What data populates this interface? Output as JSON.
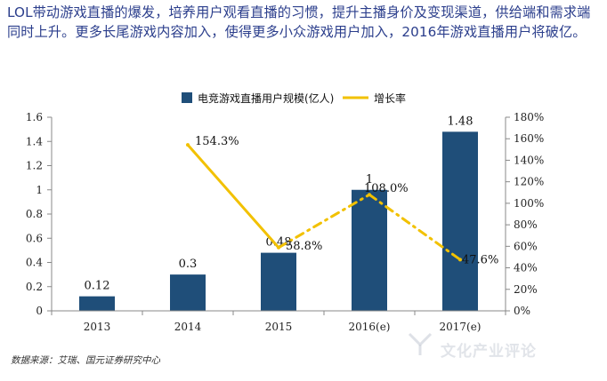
{
  "intro_text": "LOL带动游戏直播的爆发，培养用户观看直播的习惯，提升主播身价及变现渠道，供给端和需求端同时上升。更多长尾游戏内容加入，使得更多小众游戏用户加入，2016年游戏直播用户将破亿。",
  "source_text": "数据来源：艾瑞、国元证券研究中心",
  "watermark_text": "文化产业评论",
  "chart_data": {
    "type": "bar",
    "categories": [
      "2013",
      "2014",
      "2015",
      "2016(e)",
      "2017(e)"
    ],
    "series": [
      {
        "name": "电竞游戏直播用户规模(亿人)",
        "kind": "bar",
        "axis": "left",
        "color": "#1f4e79",
        "values": [
          0.12,
          0.3,
          0.48,
          1,
          1.48
        ],
        "labels": [
          "0.12",
          "0.3",
          "0.48",
          "1",
          "1.48"
        ]
      },
      {
        "name": "增长率",
        "kind": "line",
        "axis": "right",
        "color": "#f2c100",
        "values": [
          null,
          154.3,
          58.8,
          108.0,
          47.6
        ],
        "labels": [
          "",
          "154.3%",
          "58.8%",
          "108.0%",
          "47.6%"
        ],
        "dashed_after_index": 2
      }
    ],
    "y_left": {
      "min": 0,
      "max": 1.6,
      "ticks": [
        "0",
        "0.2",
        "0.4",
        "0.6",
        "0.8",
        "1",
        "1.2",
        "1.4",
        "1.6"
      ]
    },
    "y_right": {
      "min": 0,
      "max": 180,
      "ticks": [
        "0%",
        "20%",
        "40%",
        "60%",
        "80%",
        "100%",
        "120%",
        "140%",
        "160%",
        "180%"
      ]
    },
    "grid": false,
    "legend_position": "top-center"
  }
}
